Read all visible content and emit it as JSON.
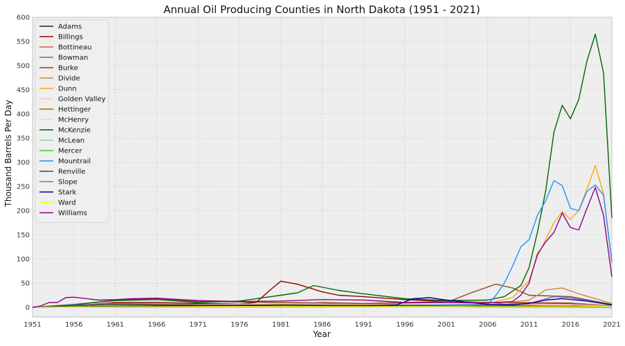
{
  "chart_data": {
    "type": "line",
    "title": "Annual Oil Producing Counties in North Dakota (1951 - 2021)",
    "xlabel": "Year",
    "ylabel": "Thousand Barrels Per Day",
    "xlim": [
      1951,
      2021
    ],
    "ylim": [
      -20,
      600
    ],
    "xticks": [
      "1951",
      "1956",
      "1961",
      "1966",
      "1971",
      "1976",
      "1981",
      "1986",
      "1991",
      "1996",
      "2001",
      "2006",
      "2011",
      "2016",
      "2021"
    ],
    "yticks": [
      "0",
      "50",
      "100",
      "150",
      "200",
      "250",
      "300",
      "350",
      "400",
      "450",
      "500",
      "550",
      "600"
    ],
    "grid": true,
    "legend_position": "top-left",
    "series": [
      {
        "name": "Adams",
        "color": "#222222",
        "points": [
          [
            1951,
            0
          ],
          [
            1960,
            1
          ],
          [
            1980,
            1
          ],
          [
            2000,
            1
          ],
          [
            2021,
            0
          ]
        ]
      },
      {
        "name": "Billings",
        "color": "#8b0000",
        "points": [
          [
            1951,
            0
          ],
          [
            1956,
            3
          ],
          [
            1961,
            10
          ],
          [
            1966,
            10
          ],
          [
            1971,
            8
          ],
          [
            1976,
            7
          ],
          [
            1978,
            10
          ],
          [
            1980,
            40
          ],
          [
            1981,
            54
          ],
          [
            1983,
            48
          ],
          [
            1986,
            32
          ],
          [
            1988,
            25
          ],
          [
            1991,
            22
          ],
          [
            1996,
            16
          ],
          [
            2001,
            12
          ],
          [
            2006,
            10
          ],
          [
            2011,
            9
          ],
          [
            2016,
            8
          ],
          [
            2021,
            3
          ]
        ]
      },
      {
        "name": "Bottineau",
        "color": "#e2582d",
        "points": [
          [
            1951,
            0
          ],
          [
            1955,
            2
          ],
          [
            1960,
            8
          ],
          [
            1966,
            7
          ],
          [
            1971,
            6
          ],
          [
            1981,
            7
          ],
          [
            1991,
            6
          ],
          [
            2001,
            5
          ],
          [
            2011,
            6
          ],
          [
            2016,
            5
          ],
          [
            2021,
            2
          ]
        ]
      },
      {
        "name": "Bowman",
        "color": "#b05a3c",
        "points": [
          [
            1951,
            0
          ],
          [
            1960,
            3
          ],
          [
            1966,
            4
          ],
          [
            1981,
            5
          ],
          [
            1986,
            10
          ],
          [
            1991,
            8
          ],
          [
            2001,
            12
          ],
          [
            2006,
            10
          ],
          [
            2011,
            10
          ],
          [
            2016,
            9
          ],
          [
            2021,
            3
          ]
        ]
      },
      {
        "name": "Burke",
        "color": "#8b4513",
        "points": [
          [
            1951,
            0
          ],
          [
            1956,
            5
          ],
          [
            1961,
            15
          ],
          [
            1966,
            18
          ],
          [
            1971,
            12
          ],
          [
            1981,
            10
          ],
          [
            1991,
            8
          ],
          [
            2001,
            10
          ],
          [
            2004,
            30
          ],
          [
            2007,
            48
          ],
          [
            2009,
            40
          ],
          [
            2011,
            25
          ],
          [
            2016,
            22
          ],
          [
            2021,
            6
          ]
        ]
      },
      {
        "name": "Divide",
        "color": "#cd853f",
        "points": [
          [
            1951,
            0
          ],
          [
            1961,
            6
          ],
          [
            1971,
            5
          ],
          [
            1981,
            6
          ],
          [
            1991,
            5
          ],
          [
            2001,
            4
          ],
          [
            2006,
            5
          ],
          [
            2011,
            15
          ],
          [
            2012,
            25
          ],
          [
            2013,
            36
          ],
          [
            2015,
            40
          ],
          [
            2017,
            28
          ],
          [
            2019,
            18
          ],
          [
            2021,
            8
          ]
        ]
      },
      {
        "name": "Dunn",
        "color": "#ffa500",
        "points": [
          [
            1951,
            0
          ],
          [
            1961,
            3
          ],
          [
            1976,
            5
          ],
          [
            1981,
            8
          ],
          [
            1991,
            6
          ],
          [
            2001,
            5
          ],
          [
            2006,
            8
          ],
          [
            2009,
            20
          ],
          [
            2011,
            55
          ],
          [
            2012,
            105
          ],
          [
            2014,
            175
          ],
          [
            2015,
            198
          ],
          [
            2016,
            182
          ],
          [
            2017,
            200
          ],
          [
            2018,
            245
          ],
          [
            2019,
            293
          ],
          [
            2020,
            235
          ],
          [
            2021,
            90
          ]
        ]
      },
      {
        "name": "Golden Valley",
        "color": "#ffc0cb",
        "points": [
          [
            1951,
            0
          ],
          [
            1961,
            2
          ],
          [
            1981,
            8
          ],
          [
            1991,
            5
          ],
          [
            2001,
            4
          ],
          [
            2011,
            5
          ],
          [
            2016,
            6
          ],
          [
            2021,
            2
          ]
        ]
      },
      {
        "name": "Hettinger",
        "color": "#808000",
        "points": [
          [
            1951,
            0
          ],
          [
            1961,
            2
          ],
          [
            1981,
            3
          ],
          [
            2001,
            2
          ],
          [
            2011,
            2
          ],
          [
            2021,
            1
          ]
        ]
      },
      {
        "name": "McHenry",
        "color": "#e6e68a",
        "points": [
          [
            1951,
            0
          ],
          [
            1961,
            1
          ],
          [
            1981,
            2
          ],
          [
            2001,
            1
          ],
          [
            2021,
            1
          ]
        ]
      },
      {
        "name": "McKenzie",
        "color": "#006400",
        "points": [
          [
            1951,
            0
          ],
          [
            1956,
            6
          ],
          [
            1961,
            14
          ],
          [
            1966,
            16
          ],
          [
            1971,
            10
          ],
          [
            1976,
            13
          ],
          [
            1981,
            25
          ],
          [
            1983,
            30
          ],
          [
            1985,
            45
          ],
          [
            1988,
            35
          ],
          [
            1991,
            28
          ],
          [
            1996,
            18
          ],
          [
            2001,
            14
          ],
          [
            2006,
            15
          ],
          [
            2008,
            22
          ],
          [
            2010,
            45
          ],
          [
            2011,
            82
          ],
          [
            2012,
            155
          ],
          [
            2013,
            240
          ],
          [
            2014,
            362
          ],
          [
            2015,
            418
          ],
          [
            2016,
            390
          ],
          [
            2017,
            430
          ],
          [
            2018,
            510
          ],
          [
            2019,
            565
          ],
          [
            2020,
            485
          ],
          [
            2021,
            185
          ]
        ]
      },
      {
        "name": "McLean",
        "color": "#9fc99f",
        "points": [
          [
            1951,
            0
          ],
          [
            1961,
            1
          ],
          [
            1981,
            2
          ],
          [
            2001,
            1
          ],
          [
            2011,
            3
          ],
          [
            2021,
            2
          ]
        ]
      },
      {
        "name": "Mercer",
        "color": "#32cd32",
        "points": [
          [
            1951,
            0
          ],
          [
            1961,
            1
          ],
          [
            1981,
            1
          ],
          [
            2001,
            1
          ],
          [
            2021,
            0
          ]
        ]
      },
      {
        "name": "Mountrail",
        "color": "#1e90ff",
        "points": [
          [
            1951,
            0
          ],
          [
            1956,
            5
          ],
          [
            1961,
            6
          ],
          [
            1966,
            5
          ],
          [
            1976,
            4
          ],
          [
            1991,
            4
          ],
          [
            2001,
            5
          ],
          [
            2006,
            6
          ],
          [
            2007,
            25
          ],
          [
            2008,
            50
          ],
          [
            2009,
            85
          ],
          [
            2010,
            125
          ],
          [
            2011,
            140
          ],
          [
            2012,
            190
          ],
          [
            2013,
            220
          ],
          [
            2014,
            262
          ],
          [
            2015,
            252
          ],
          [
            2016,
            205
          ],
          [
            2017,
            200
          ],
          [
            2018,
            240
          ],
          [
            2019,
            253
          ],
          [
            2020,
            232
          ],
          [
            2021,
            95
          ]
        ]
      },
      {
        "name": "Renville",
        "color": "#2f4f2f",
        "points": [
          [
            1951,
            0
          ],
          [
            1956,
            4
          ],
          [
            1961,
            6
          ],
          [
            1966,
            5
          ],
          [
            1971,
            4
          ],
          [
            1981,
            5
          ],
          [
            1991,
            4
          ],
          [
            2001,
            3
          ],
          [
            2011,
            3
          ],
          [
            2021,
            1
          ]
        ]
      },
      {
        "name": "Slope",
        "color": "#7b68ee",
        "points": [
          [
            1951,
            0
          ],
          [
            1981,
            1
          ],
          [
            2001,
            2
          ],
          [
            2011,
            8
          ],
          [
            2014,
            22
          ],
          [
            2016,
            20
          ],
          [
            2021,
            5
          ]
        ]
      },
      {
        "name": "Stark",
        "color": "#00008b",
        "points": [
          [
            1951,
            0
          ],
          [
            1961,
            2
          ],
          [
            1976,
            4
          ],
          [
            1981,
            3
          ],
          [
            1991,
            3
          ],
          [
            1995,
            5
          ],
          [
            1997,
            18
          ],
          [
            1999,
            20
          ],
          [
            2001,
            15
          ],
          [
            2004,
            10
          ],
          [
            2006,
            6
          ],
          [
            2009,
            5
          ],
          [
            2011,
            8
          ],
          [
            2013,
            15
          ],
          [
            2015,
            18
          ],
          [
            2018,
            13
          ],
          [
            2021,
            5
          ]
        ]
      },
      {
        "name": "Ward",
        "color": "#ffff00",
        "points": [
          [
            1951,
            0
          ],
          [
            1961,
            1
          ],
          [
            1981,
            2
          ],
          [
            2001,
            1
          ],
          [
            2021,
            1
          ]
        ]
      },
      {
        "name": "Williams",
        "color": "#8b008b",
        "points": [
          [
            1951,
            0
          ],
          [
            1952,
            3
          ],
          [
            1953,
            10
          ],
          [
            1954,
            10
          ],
          [
            1955,
            20
          ],
          [
            1956,
            21
          ],
          [
            1957,
            19
          ],
          [
            1959,
            15
          ],
          [
            1961,
            16
          ],
          [
            1963,
            18
          ],
          [
            1966,
            19
          ],
          [
            1968,
            17
          ],
          [
            1971,
            14
          ],
          [
            1976,
            12
          ],
          [
            1981,
            13
          ],
          [
            1986,
            16
          ],
          [
            1991,
            15
          ],
          [
            1996,
            10
          ],
          [
            2001,
            10
          ],
          [
            2006,
            9
          ],
          [
            2009,
            12
          ],
          [
            2010,
            25
          ],
          [
            2011,
            50
          ],
          [
            2012,
            110
          ],
          [
            2013,
            135
          ],
          [
            2014,
            155
          ],
          [
            2015,
            195
          ],
          [
            2016,
            165
          ],
          [
            2017,
            160
          ],
          [
            2018,
            205
          ],
          [
            2019,
            248
          ],
          [
            2020,
            190
          ],
          [
            2021,
            63
          ]
        ]
      }
    ]
  }
}
